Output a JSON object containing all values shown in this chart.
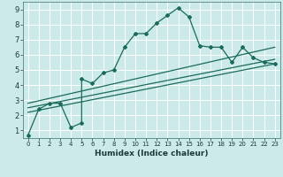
{
  "xlabel": "Humidex (Indice chaleur)",
  "bg_color": "#cceaea",
  "grid_color": "#ffffff",
  "line_color": "#1a6b5a",
  "xlim": [
    -0.5,
    23.5
  ],
  "ylim": [
    0.5,
    9.5
  ],
  "xticks": [
    0,
    1,
    2,
    3,
    4,
    5,
    6,
    7,
    8,
    9,
    10,
    11,
    12,
    13,
    14,
    15,
    16,
    17,
    18,
    19,
    20,
    21,
    22,
    23
  ],
  "yticks": [
    1,
    2,
    3,
    4,
    5,
    6,
    7,
    8,
    9
  ],
  "line1_x": [
    0,
    1,
    2,
    3,
    4,
    5,
    5,
    6,
    7,
    8,
    9,
    10,
    11,
    12,
    13,
    14,
    15,
    16,
    17,
    18,
    19,
    20,
    21,
    22,
    23
  ],
  "line1_y": [
    0.7,
    2.4,
    2.8,
    2.8,
    1.2,
    1.5,
    4.4,
    4.1,
    4.8,
    5.0,
    6.5,
    7.4,
    7.4,
    8.1,
    8.6,
    9.1,
    8.5,
    6.6,
    6.5,
    6.5,
    5.5,
    6.5,
    5.8,
    5.5,
    5.4
  ],
  "line2_x": [
    0,
    23
  ],
  "line2_y": [
    2.8,
    6.5
  ],
  "line3_x": [
    0,
    23
  ],
  "line3_y": [
    2.5,
    5.7
  ],
  "line4_x": [
    0,
    23
  ],
  "line4_y": [
    2.2,
    5.4
  ]
}
